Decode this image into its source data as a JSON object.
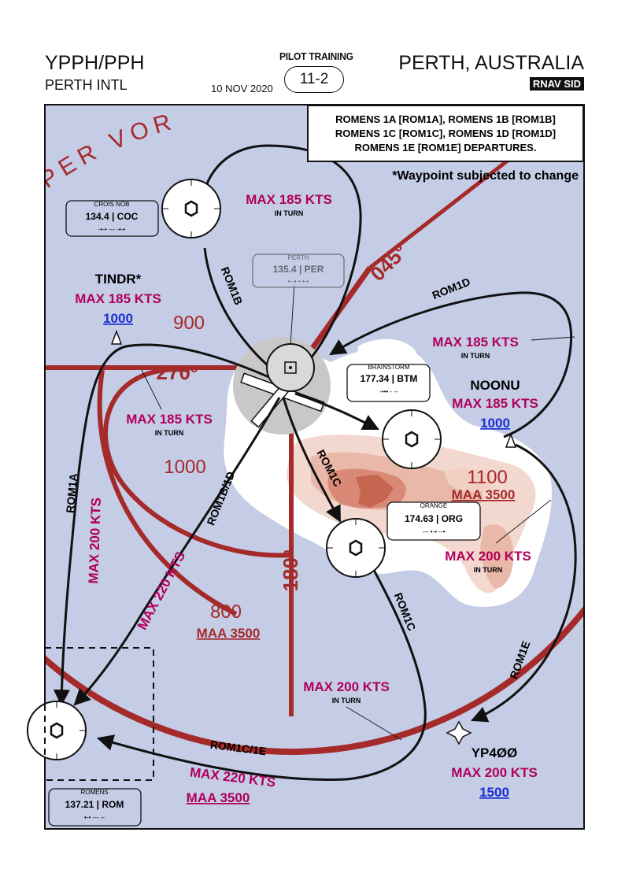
{
  "header": {
    "icao": "YPPH/PPH",
    "airport_name": "PERTH INTL",
    "date": "10 NOV 2020",
    "series": "PILOT TRAINING",
    "page": "11-2",
    "city": "PERTH, AUSTRALIA",
    "procedure_type": "RNAV SID"
  },
  "title_box": {
    "line1": "ROMENS 1A [ROM1A], ROMENS 1B [ROM1B]",
    "line2": "ROMENS 1C [ROM1C], ROMENS 1D [ROM1D]",
    "line3": "ROMENS 1E [ROM1E] DEPARTURES."
  },
  "note": "*Waypoint subjected to change",
  "vor_ring_label": "PER VOR",
  "radials": {
    "r045": "045º",
    "r270": "270º",
    "r180": "180º"
  },
  "msa_sectors": {
    "nw": "900",
    "w": "1000",
    "s": "800",
    "s_maa": "MAA 3500",
    "e": "1100",
    "e_maa": "MAA 3500"
  },
  "navaids": {
    "crois": {
      "name": "CROIS NÔB",
      "freq": "134.4 | COC",
      "morse": "-•-• --- -•-•"
    },
    "perth": {
      "name": "PERTH",
      "freq": "135.4 | PER",
      "morse": "•--• • •-•"
    },
    "brainstorm": {
      "name": "BRAINSTORM",
      "freq": "177.34 | BTM",
      "morse": "-••• - --"
    },
    "orange": {
      "name": "ORANGE",
      "freq": "174.63 | ORG",
      "morse": "--- •-• --•"
    },
    "romens": {
      "name": "ROMENS",
      "freq": "137.21 | ROM",
      "morse": "•-• --- --"
    }
  },
  "waypoints": {
    "tindr": {
      "name": "TINDR*",
      "speed": "MAX 185 KTS",
      "alt": "1000"
    },
    "noonu": {
      "name": "NOONU",
      "speed": "MAX 185 KTS",
      "alt": "1000"
    },
    "yp400": {
      "name": "YP4ØØ",
      "speed": "MAX 200 KTS",
      "alt": "1500"
    }
  },
  "routes": {
    "rom1a": "ROM1A",
    "rom1b": "ROM1B",
    "rom1c_a": "ROM1C",
    "rom1c_b": "ROM1C",
    "rom1d": "ROM1D",
    "rom1e": "ROM1E",
    "rom1bd": "ROM1B/1D",
    "rom1c1e": "ROM1C/1E"
  },
  "restrictions": {
    "top": {
      "speed": "MAX 185 KTS",
      "sub": "IN TURN"
    },
    "rom1d": {
      "speed": "MAX 185 KTS",
      "sub": "IN TURN"
    },
    "west": {
      "speed": "MAX 185 KTS",
      "sub": "IN TURN"
    },
    "east": {
      "speed": "MAX 200 KTS",
      "sub": "IN TURN"
    },
    "south": {
      "speed": "MAX 200 KTS",
      "sub": "IN TURN"
    },
    "rom1a_leg": "MAX 200 KTS",
    "rom1bd_leg": "MAX 220 KTS",
    "rom1c1e_speed": "MAX 220 KTS",
    "rom1c1e_maa": "MAA 3500"
  },
  "colors": {
    "map_water": "#c5cce6",
    "vor_ring": "#a52a2a",
    "restriction": "#b0005a",
    "altitude_link": "#1a2fd0"
  }
}
